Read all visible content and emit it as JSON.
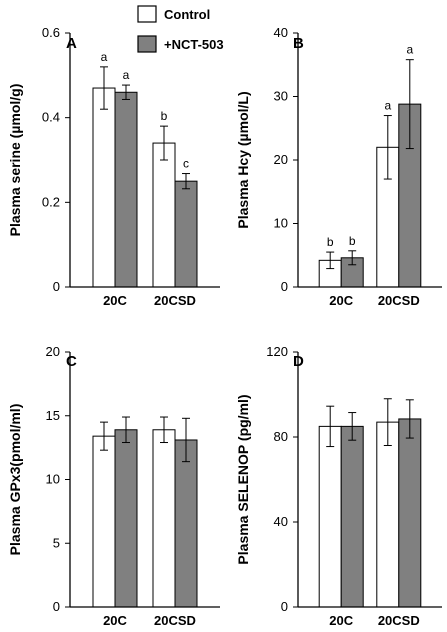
{
  "legend": [
    {
      "label": "Control",
      "color": "#ffffff"
    },
    {
      "label": "+NCT-503",
      "color": "#808080"
    }
  ],
  "chart_data": [
    {
      "type": "bar",
      "panel": "A",
      "ylabel": "Plasma serine (µmol/g)",
      "ylim": [
        0,
        0.6
      ],
      "yticks": [
        "0",
        "0.2",
        "0.4",
        "0.6"
      ],
      "categories": [
        "20C",
        "20CSD"
      ],
      "series": [
        {
          "name": "Control",
          "values": [
            0.47,
            0.34
          ],
          "errors": [
            0.05,
            0.04
          ],
          "labels": [
            "a",
            "b"
          ]
        },
        {
          "name": "+NCT-503",
          "values": [
            0.46,
            0.25
          ],
          "errors": [
            0.017,
            0.018
          ],
          "labels": [
            "a",
            "c"
          ]
        }
      ]
    },
    {
      "type": "bar",
      "panel": "B",
      "ylabel": "Plasma Hcy (µmol/L)",
      "ylim": [
        0,
        40
      ],
      "yticks": [
        "0",
        "10",
        "20",
        "30",
        "40"
      ],
      "categories": [
        "20C",
        "20CSD"
      ],
      "series": [
        {
          "name": "Control",
          "values": [
            4.2,
            22.0
          ],
          "errors": [
            1.3,
            5.0
          ],
          "labels": [
            "b",
            "a"
          ]
        },
        {
          "name": "+NCT-503",
          "values": [
            4.6,
            28.8
          ],
          "errors": [
            1.1,
            7.0
          ],
          "labels": [
            "b",
            "a"
          ]
        }
      ]
    },
    {
      "type": "bar",
      "panel": "C",
      "ylabel": "Plasma GPx3(pmol/ml)",
      "ylim": [
        0,
        20
      ],
      "yticks": [
        "0",
        "5",
        "10",
        "15",
        "20"
      ],
      "categories": [
        "20C",
        "20CSD"
      ],
      "series": [
        {
          "name": "Control",
          "values": [
            13.4,
            13.9
          ],
          "errors": [
            1.1,
            1.0
          ],
          "labels": [
            "",
            ""
          ]
        },
        {
          "name": "+NCT-503",
          "values": [
            13.9,
            13.1
          ],
          "errors": [
            1.0,
            1.7
          ],
          "labels": [
            "",
            ""
          ]
        }
      ]
    },
    {
      "type": "bar",
      "panel": "D",
      "ylabel": "Plasma SELENOP (pg/ml)",
      "ylim": [
        0,
        120
      ],
      "yticks": [
        "0",
        "40",
        "80",
        "120"
      ],
      "categories": [
        "20C",
        "20CSD"
      ],
      "series": [
        {
          "name": "Control",
          "values": [
            85,
            87
          ],
          "errors": [
            9.5,
            11
          ],
          "labels": [
            "",
            ""
          ]
        },
        {
          "name": "+NCT-503",
          "values": [
            85,
            88.5
          ],
          "errors": [
            6.5,
            9
          ],
          "labels": [
            "",
            ""
          ]
        }
      ]
    }
  ]
}
